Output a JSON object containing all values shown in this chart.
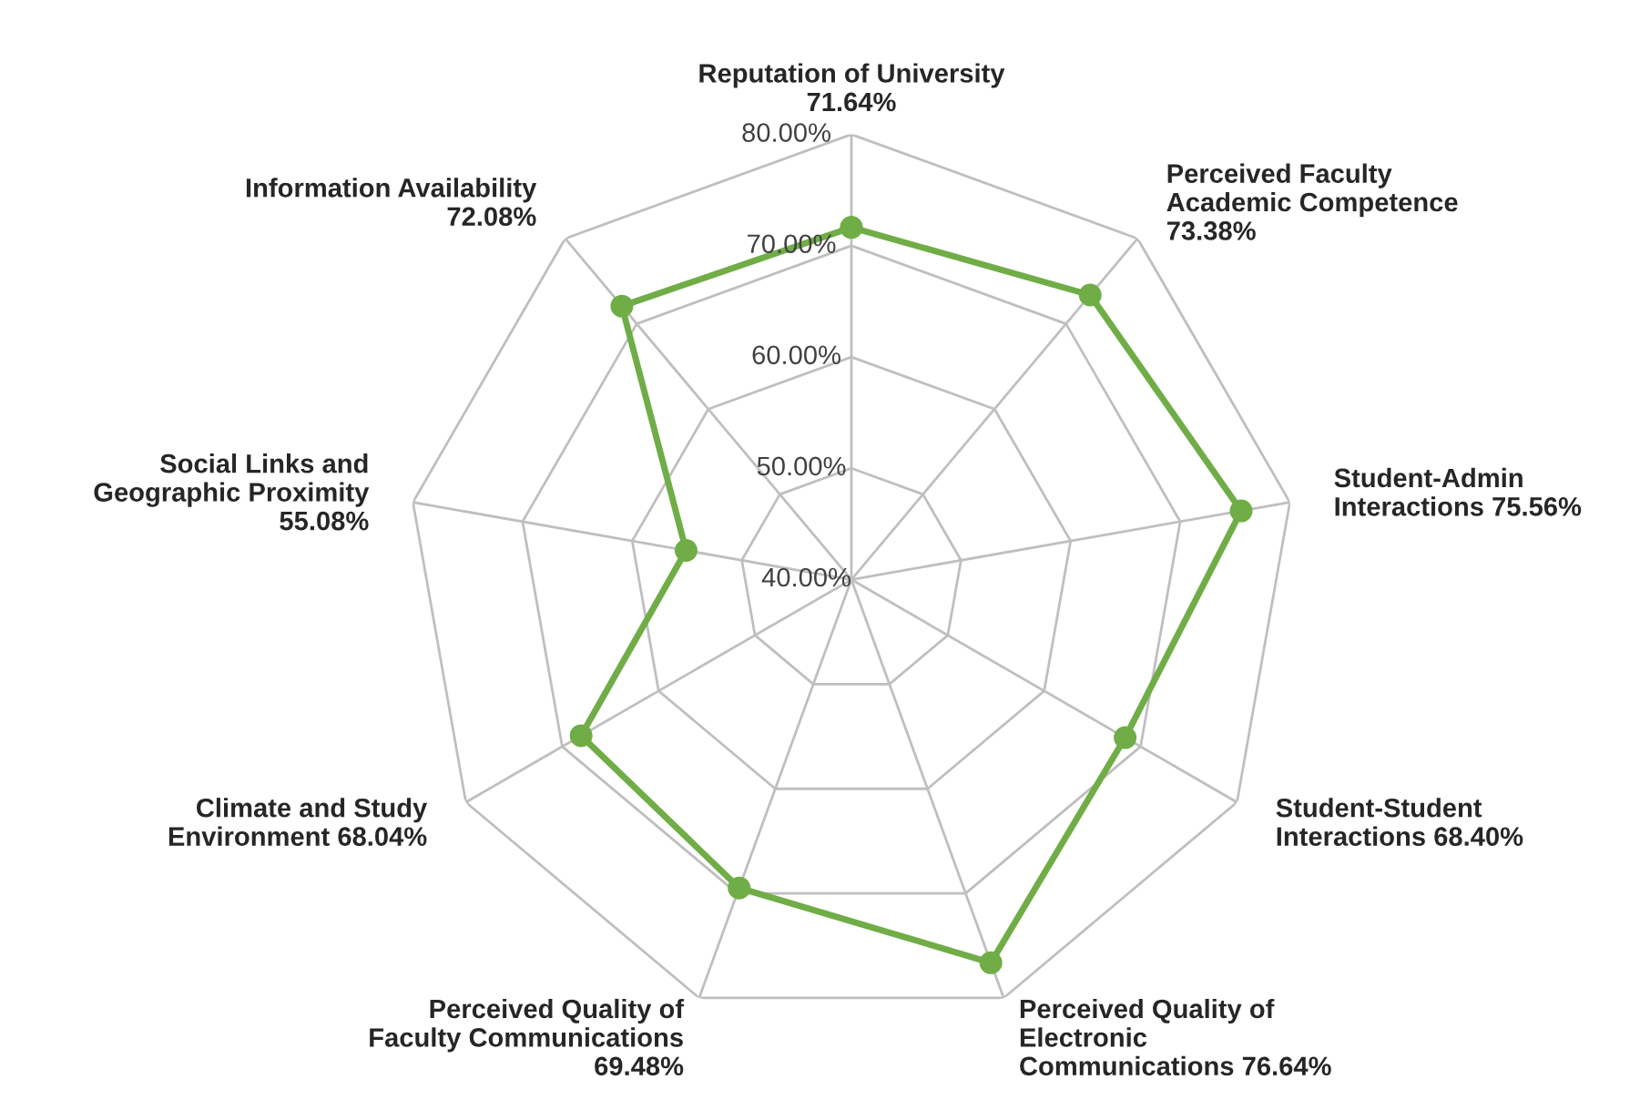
{
  "chart_data": {
    "type": "radar",
    "categories": [
      "Reputation of University\n71.64%",
      "Perceived Faculty\nAcademic Competence\n73.38%",
      "Student-Admin\nInteractions 75.56%",
      "Student-Student\nInteractions 68.40%",
      "Perceived Quality of\nElectronic\nCommunications 76.64%",
      "Perceived Quality of\nFaculty Communications\n69.48%",
      "Climate and Study\nEnvironment 68.04%",
      "Social Links and\nGeographic Proximity\n55.08%",
      "Information Availability\n72.08%"
    ],
    "series": [
      {
        "color": "#70ad47",
        "values": [
          71.64,
          73.38,
          75.56,
          68.4,
          76.64,
          69.48,
          68.04,
          55.08,
          72.08
        ]
      }
    ],
    "ylim": [
      40,
      80
    ],
    "yticks": [
      {
        "value": 40,
        "label": "40.00%"
      },
      {
        "value": 50,
        "label": "50.00%"
      },
      {
        "value": 60,
        "label": "60.00%"
      },
      {
        "value": 70,
        "label": "70.00%"
      },
      {
        "value": 80,
        "label": "80.00%"
      }
    ],
    "grid": true,
    "marker": "circle",
    "line_style": "solid",
    "legend": false
  }
}
